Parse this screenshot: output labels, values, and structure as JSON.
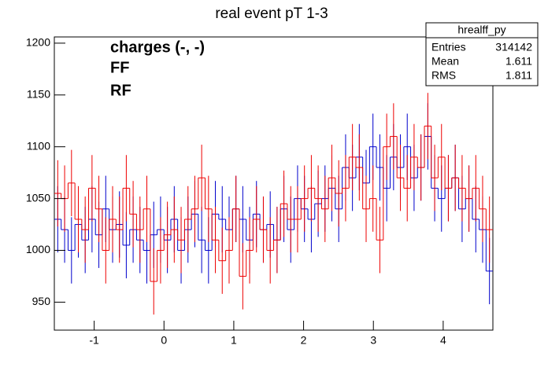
{
  "chart_data": {
    "type": "histogram",
    "title": "real event pT 1-3",
    "annotations": [
      "charges (-, -)"
    ],
    "stats": {
      "name": "hrealff_py",
      "rows": [
        [
          "Entries",
          "314142"
        ],
        [
          "Mean",
          "1.611"
        ],
        [
          "RMS",
          "1.811"
        ]
      ]
    },
    "bins": [
      -1.571,
      -1.473,
      -1.374,
      -1.276,
      -1.178,
      -1.08,
      -0.982,
      -0.884,
      -0.785,
      -0.687,
      -0.589,
      -0.491,
      -0.393,
      -0.295,
      -0.196,
      -0.098,
      0.0,
      0.098,
      0.196,
      0.295,
      0.393,
      0.491,
      0.589,
      0.687,
      0.785,
      0.884,
      0.982,
      1.08,
      1.178,
      1.276,
      1.374,
      1.473,
      1.571,
      1.669,
      1.767,
      1.865,
      1.963,
      2.062,
      2.16,
      2.258,
      2.356,
      2.454,
      2.553,
      2.651,
      2.749,
      2.847,
      2.945,
      3.043,
      3.142,
      3.24,
      3.338,
      3.436,
      3.534,
      3.632,
      3.731,
      3.829,
      3.927,
      4.025,
      4.123,
      4.222,
      4.32,
      4.418,
      4.516,
      4.614,
      4.712
    ],
    "series": [
      {
        "name": "FF",
        "color": "#0000cc",
        "values": [
          1030,
          1020,
          1000,
          1025,
          1010,
          1030,
          1015,
          1040,
          1020,
          1025,
          1005,
          1020,
          1010,
          1000,
          1015,
          1020,
          1010,
          1030,
          1000,
          1020,
          1035,
          1010,
          1000,
          1035,
          1030,
          1020,
          1040,
          1030,
          1010,
          1035,
          1020,
          1025,
          1010,
          1040,
          1020,
          1050,
          1040,
          1030,
          1045,
          1050,
          1060,
          1040,
          1080,
          1070,
          1090,
          1065,
          1100,
          1080,
          1060,
          1090,
          1080,
          1100,
          1070,
          1080,
          1110,
          1060,
          1050,
          1060,
          1070,
          1040,
          1050,
          1030,
          1020,
          980
        ],
        "errors": [
          32,
          32,
          32,
          32,
          32,
          32,
          32,
          32,
          32,
          32,
          32,
          32,
          32,
          32,
          32,
          32,
          32,
          32,
          32,
          32,
          32,
          32,
          32,
          32,
          32,
          32,
          32,
          32,
          32,
          32,
          32,
          32,
          32,
          32,
          32,
          32,
          32,
          32,
          32,
          32,
          32,
          32,
          32,
          32,
          32,
          32,
          32,
          32,
          32,
          32,
          32,
          32,
          32,
          32,
          32,
          32,
          32,
          32,
          32,
          32,
          32,
          32,
          32,
          32
        ]
      },
      {
        "name": "RF",
        "color": "#ee0000",
        "values": [
          1055,
          1050,
          1065,
          1030,
          1020,
          1060,
          1040,
          1000,
          1030,
          1020,
          1060,
          1035,
          1020,
          1040,
          970,
          1000,
          1015,
          1020,
          1010,
          1030,
          1040,
          1070,
          1040,
          1010,
          990,
          1000,
          1040,
          975,
          1000,
          1030,
          1020,
          1000,
          1010,
          1045,
          1030,
          1030,
          1050,
          1060,
          1050,
          1040,
          1070,
          1055,
          1060,
          1090,
          1080,
          1040,
          1050,
          1010,
          1100,
          1110,
          1070,
          1060,
          1090,
          1080,
          1120,
          1070,
          1090,
          1060,
          1070,
          1060,
          1050,
          1060,
          1040,
          1020
        ],
        "errors": [
          32,
          32,
          32,
          32,
          32,
          32,
          32,
          32,
          32,
          32,
          32,
          32,
          32,
          32,
          32,
          32,
          32,
          32,
          32,
          32,
          32,
          32,
          32,
          32,
          32,
          32,
          32,
          32,
          32,
          32,
          32,
          32,
          32,
          32,
          32,
          32,
          32,
          32,
          32,
          32,
          32,
          32,
          32,
          32,
          32,
          32,
          32,
          32,
          32,
          32,
          32,
          32,
          32,
          32,
          32,
          32,
          32,
          32,
          32,
          32,
          32,
          32,
          32,
          32
        ]
      }
    ],
    "xlim": [
      -1.571,
      4.712
    ],
    "xticks": [
      -1,
      0,
      1,
      2,
      3,
      4
    ],
    "ylim": [
      923,
      1206
    ],
    "yticks": [
      950,
      1000,
      1050,
      1100,
      1150,
      1200
    ]
  }
}
